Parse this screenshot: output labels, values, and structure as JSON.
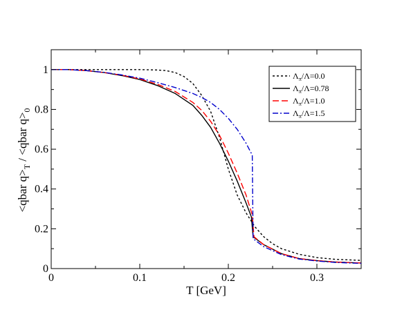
{
  "chart_data": {
    "type": "line",
    "xlabel": "T [GeV]",
    "ylabel": "<qbar q>_T / <qbar q>_0",
    "ylabel_parts": {
      "main": "<qbar q>",
      "sub1": "T",
      "mid": " / <qbar q>",
      "sub2": "0"
    },
    "xlim": [
      0,
      0.35
    ],
    "ylim": [
      0,
      1.1
    ],
    "x_ticks": [
      0,
      0.1,
      0.2,
      0.3
    ],
    "x_tick_labels": [
      "0",
      "0.1",
      "0.2",
      "0.3"
    ],
    "y_ticks": [
      0,
      0.2,
      0.4,
      0.6,
      0.8,
      1.0
    ],
    "y_tick_labels": [
      "0",
      "0.2",
      "0.4",
      "0.6",
      "0.8",
      "1"
    ],
    "grid": false,
    "legend_position": "top-right",
    "series": [
      {
        "name": "Λπ/Λ=0.0",
        "label_main": "Λ",
        "label_sub": "π",
        "label_rest": "/Λ=0.0",
        "color": "#000000",
        "dash": "3,3",
        "points": [
          [
            0,
            1.0
          ],
          [
            0.05,
            1.0
          ],
          [
            0.1,
            1.0
          ],
          [
            0.12,
            0.998
          ],
          [
            0.13,
            0.995
          ],
          [
            0.14,
            0.985
          ],
          [
            0.15,
            0.965
          ],
          [
            0.16,
            0.93
          ],
          [
            0.17,
            0.87
          ],
          [
            0.18,
            0.79
          ],
          [
            0.19,
            0.66
          ],
          [
            0.2,
            0.5
          ],
          [
            0.21,
            0.37
          ],
          [
            0.22,
            0.28
          ],
          [
            0.23,
            0.21
          ],
          [
            0.24,
            0.16
          ],
          [
            0.25,
            0.125
          ],
          [
            0.26,
            0.1
          ],
          [
            0.28,
            0.072
          ],
          [
            0.3,
            0.055
          ],
          [
            0.32,
            0.047
          ],
          [
            0.35,
            0.041
          ]
        ]
      },
      {
        "name": "Λπ/Λ=0.78",
        "label_main": "Λ",
        "label_sub": "π",
        "label_rest": "/Λ=0.78",
        "color": "#000000",
        "dash": "",
        "points": [
          [
            0,
            1.0
          ],
          [
            0.02,
            1.0
          ],
          [
            0.04,
            0.995
          ],
          [
            0.06,
            0.985
          ],
          [
            0.08,
            0.97
          ],
          [
            0.1,
            0.95
          ],
          [
            0.12,
            0.92
          ],
          [
            0.14,
            0.88
          ],
          [
            0.16,
            0.82
          ],
          [
            0.17,
            0.77
          ],
          [
            0.18,
            0.71
          ],
          [
            0.19,
            0.63
          ],
          [
            0.2,
            0.54
          ],
          [
            0.21,
            0.44
          ],
          [
            0.22,
            0.33
          ],
          [
            0.226,
            0.26
          ],
          [
            0.228,
            0.16
          ],
          [
            0.24,
            0.12
          ],
          [
            0.26,
            0.075
          ],
          [
            0.28,
            0.05
          ],
          [
            0.3,
            0.04
          ],
          [
            0.32,
            0.033
          ],
          [
            0.35,
            0.028
          ]
        ]
      },
      {
        "name": "Λπ/Λ=1.0",
        "label_main": "Λ",
        "label_sub": "π",
        "label_rest": "/Λ=1.0",
        "color": "#ff0000",
        "dash": "9,4",
        "points": [
          [
            0,
            1.0
          ],
          [
            0.02,
            1.0
          ],
          [
            0.04,
            0.995
          ],
          [
            0.06,
            0.985
          ],
          [
            0.08,
            0.972
          ],
          [
            0.1,
            0.953
          ],
          [
            0.12,
            0.926
          ],
          [
            0.14,
            0.89
          ],
          [
            0.16,
            0.835
          ],
          [
            0.17,
            0.795
          ],
          [
            0.18,
            0.74
          ],
          [
            0.19,
            0.67
          ],
          [
            0.2,
            0.58
          ],
          [
            0.21,
            0.48
          ],
          [
            0.22,
            0.37
          ],
          [
            0.227,
            0.27
          ],
          [
            0.229,
            0.16
          ],
          [
            0.24,
            0.12
          ],
          [
            0.26,
            0.075
          ],
          [
            0.28,
            0.05
          ],
          [
            0.3,
            0.04
          ],
          [
            0.32,
            0.033
          ],
          [
            0.35,
            0.028
          ]
        ]
      },
      {
        "name": "Λπ/Λ=1.5",
        "label_main": "Λ",
        "label_sub": "π",
        "label_rest": "/Λ=1.5",
        "color": "#0000cc",
        "dash": "8,3,2,3",
        "points": [
          [
            0,
            1.0
          ],
          [
            0.02,
            1.0
          ],
          [
            0.04,
            0.995
          ],
          [
            0.06,
            0.986
          ],
          [
            0.08,
            0.973
          ],
          [
            0.1,
            0.957
          ],
          [
            0.12,
            0.935
          ],
          [
            0.14,
            0.91
          ],
          [
            0.16,
            0.88
          ],
          [
            0.17,
            0.86
          ],
          [
            0.18,
            0.835
          ],
          [
            0.19,
            0.8
          ],
          [
            0.2,
            0.755
          ],
          [
            0.21,
            0.7
          ],
          [
            0.22,
            0.63
          ],
          [
            0.227,
            0.57
          ],
          [
            0.228,
            0.15
          ],
          [
            0.24,
            0.11
          ],
          [
            0.26,
            0.07
          ],
          [
            0.28,
            0.048
          ],
          [
            0.3,
            0.038
          ],
          [
            0.32,
            0.031
          ],
          [
            0.35,
            0.026
          ]
        ]
      }
    ]
  }
}
